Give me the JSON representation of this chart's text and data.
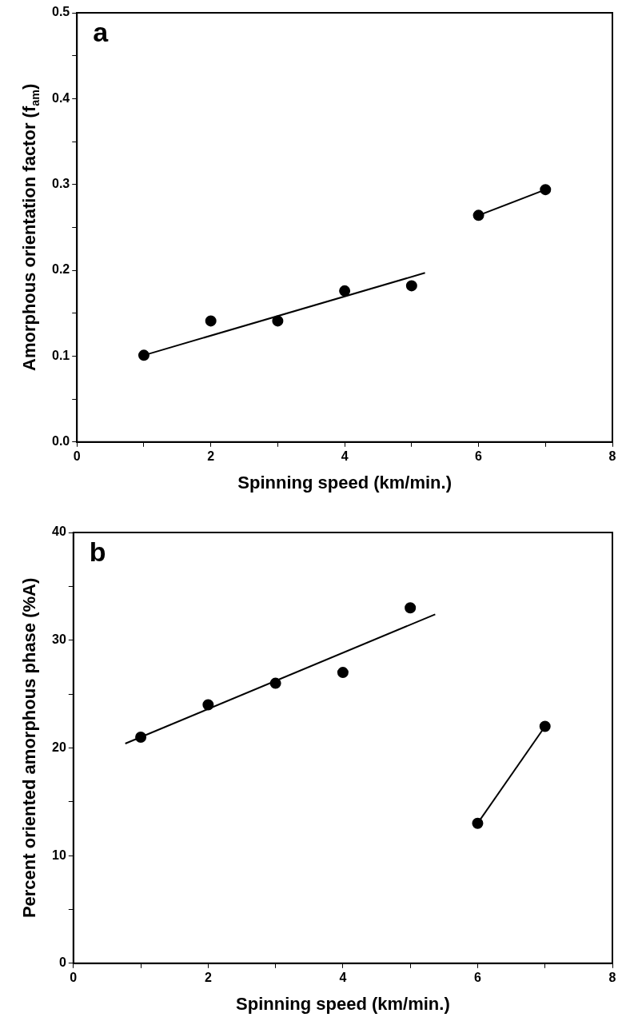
{
  "chart_data": [
    {
      "type": "scatter",
      "xlabel": "Spinning speed (km/min.)",
      "ylabel": "Amorphous orientation factor (f$_{am}$)",
      "annotations": [
        "a"
      ],
      "marker": "circle",
      "grid": false,
      "legend": false,
      "xlim": [
        0,
        8
      ],
      "xticks": [
        0,
        {
          "value": 1,
          "label": null
        },
        2,
        {
          "value": 3,
          "label": null
        },
        4,
        {
          "value": 5,
          "label": null
        },
        6,
        {
          "value": 7,
          "label": null
        },
        8
      ],
      "ylim": [
        0,
        0.5
      ],
      "yticks": [
        {
          "value": 0,
          "label": "0.0"
        },
        {
          "value": 0.05,
          "label": null
        },
        0.1,
        {
          "value": 0.15,
          "label": null
        },
        0.2,
        {
          "value": 0.25,
          "label": null
        },
        0.3,
        {
          "value": 0.35,
          "label": null
        },
        0.4,
        {
          "value": 0.45,
          "label": null
        },
        0.5
      ],
      "series": [
        {
          "type": "scatter",
          "color": "#000000",
          "x": [
            1,
            2,
            3,
            4,
            5,
            6,
            7
          ],
          "values": [
            0.101,
            0.141,
            0.141,
            0.176,
            0.182,
            0.264,
            0.294
          ]
        },
        {
          "type": "line",
          "color": "#000000",
          "marker": "none",
          "x": [
            1,
            5.2
          ],
          "values": [
            0.101,
            0.197
          ]
        },
        {
          "type": "line",
          "color": "#000000",
          "marker": "none",
          "x": [
            6,
            7
          ],
          "values": [
            0.264,
            0.294
          ]
        }
      ]
    },
    {
      "type": "scatter",
      "xlabel": "Spinning speed (km/min.)",
      "ylabel": "Percent oriented amorphous phase (%A)",
      "annotations": [
        "b"
      ],
      "marker": "circle",
      "grid": false,
      "legend": false,
      "xlim": [
        0,
        8
      ],
      "xticks": [
        0,
        {
          "value": 1,
          "label": null
        },
        2,
        {
          "value": 3,
          "label": null
        },
        4,
        {
          "value": 5,
          "label": null
        },
        6,
        {
          "value": 7,
          "label": null
        },
        8
      ],
      "ylim": [
        0,
        40
      ],
      "yticks": [
        0,
        {
          "value": 5,
          "label": null
        },
        10,
        {
          "value": 15,
          "label": null
        },
        20,
        {
          "value": 25,
          "label": null
        },
        30,
        {
          "value": 35,
          "label": null
        },
        40
      ],
      "series": [
        {
          "type": "scatter",
          "color": "#000000",
          "x": [
            1,
            2,
            3,
            4,
            5,
            6,
            7
          ],
          "values": [
            21,
            24,
            26,
            27,
            33,
            13,
            22
          ]
        },
        {
          "type": "line",
          "color": "#000000",
          "marker": "none",
          "x": [
            0.77,
            5.37
          ],
          "values": [
            20.4,
            32.4
          ]
        },
        {
          "type": "line",
          "color": "#000000",
          "marker": "none",
          "x": [
            6,
            7
          ],
          "values": [
            13,
            22
          ]
        }
      ]
    }
  ]
}
